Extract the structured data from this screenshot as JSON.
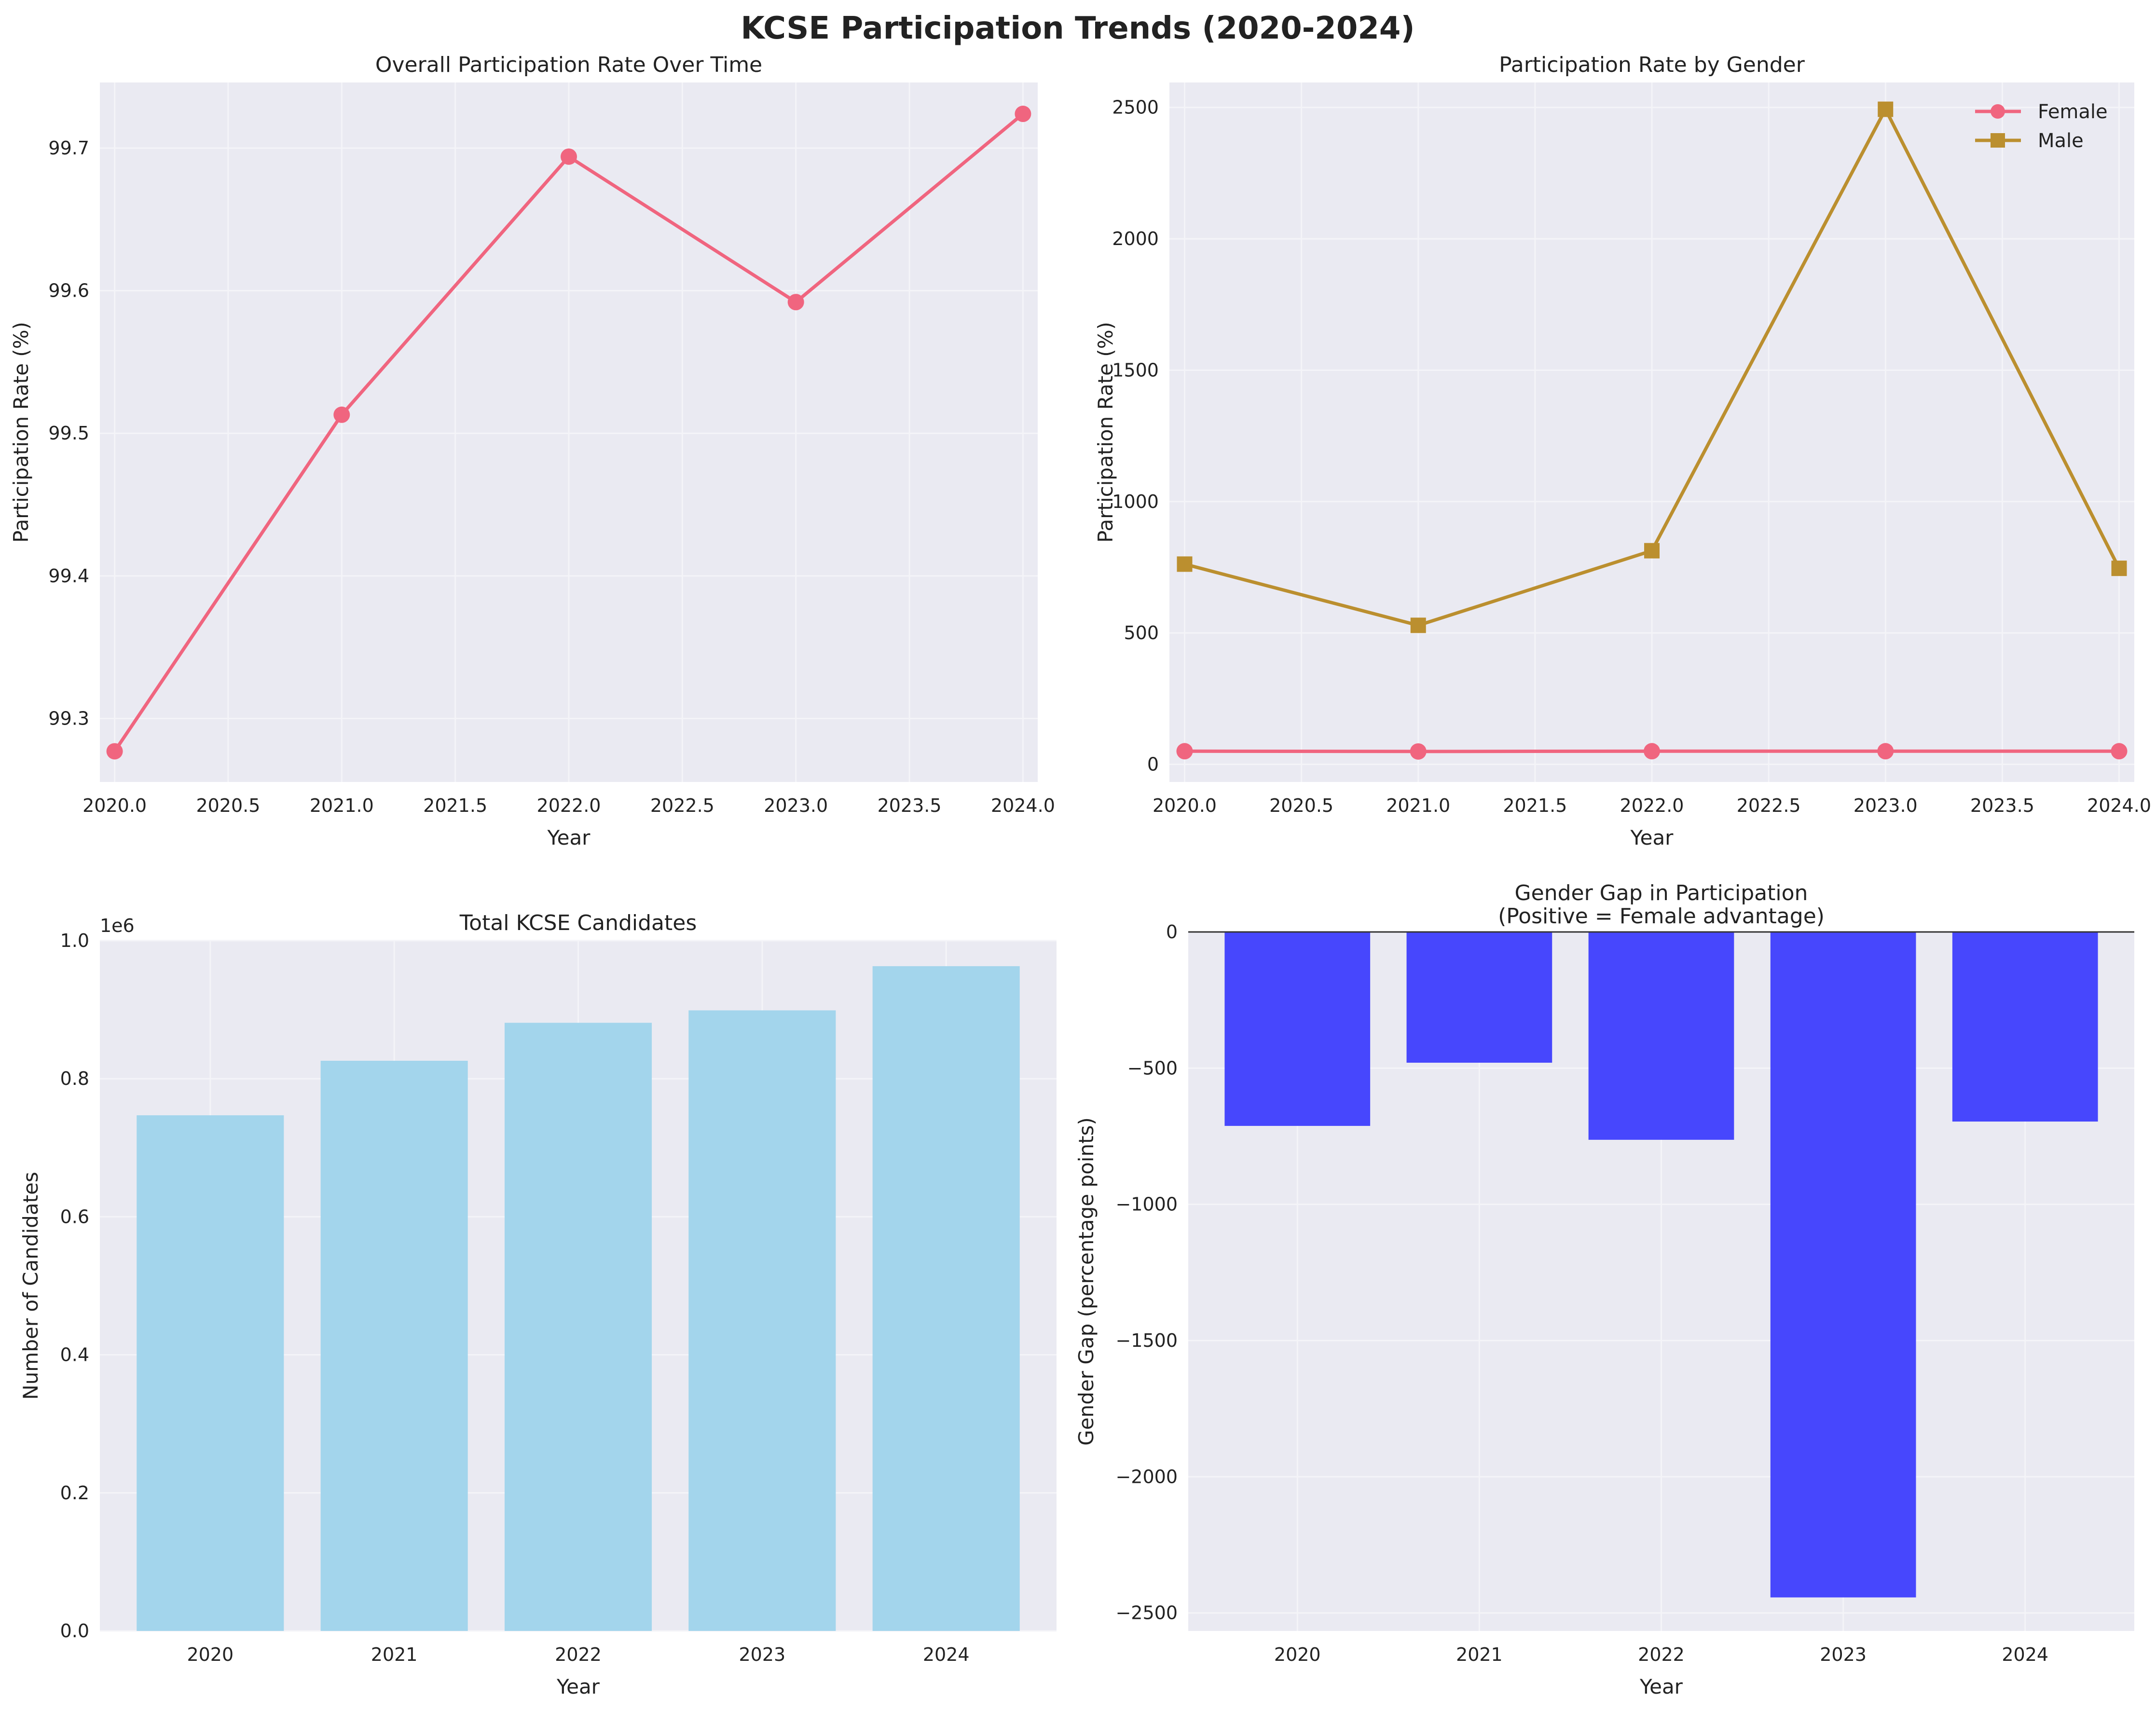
{
  "title": "KCSE Participation Trends (2020-2024)",
  "colors": {
    "plot_bg": "#eaeaf2",
    "grid": "#f4f4f8",
    "overall_line": "#f0657f",
    "female_line": "#f0657f",
    "male_line": "#bb8f2f",
    "candidates_bar": "#a3d5ec",
    "gap_bar": "#4747fd",
    "zero_line": "#333333"
  },
  "chart_data": [
    {
      "id": "overall",
      "type": "line",
      "title": "Overall Participation Rate Over Time",
      "xlabel": "Year",
      "ylabel": "Participation Rate (%)",
      "xlim": [
        2019.935,
        2024.065
      ],
      "ylim": [
        99.2555,
        99.746
      ],
      "xticks": [
        2020.0,
        2020.5,
        2021.0,
        2021.5,
        2022.0,
        2022.5,
        2023.0,
        2023.5,
        2024.0
      ],
      "xtick_labels": [
        "2020.0",
        "2020.5",
        "2021.0",
        "2021.5",
        "2022.0",
        "2022.5",
        "2023.0",
        "2023.5",
        "2024.0"
      ],
      "yticks": [
        99.3,
        99.4,
        99.5,
        99.6,
        99.7
      ],
      "ytick_labels": [
        "99.3",
        "99.4",
        "99.5",
        "99.6",
        "99.7"
      ],
      "grid": true,
      "x": [
        2020,
        2021,
        2022,
        2023,
        2024
      ],
      "series": [
        {
          "values": [
            99.277,
            99.513,
            99.694,
            99.592,
            99.724
          ],
          "marker": "circle"
        }
      ]
    },
    {
      "id": "gender",
      "type": "line",
      "title": "Participation Rate by Gender",
      "xlabel": "Year",
      "ylabel": "Participation Rate (%)",
      "xlim": [
        2019.935,
        2024.065
      ],
      "ylim": [
        -67,
        2595
      ],
      "xticks": [
        2020.0,
        2020.5,
        2021.0,
        2021.5,
        2022.0,
        2022.5,
        2023.0,
        2023.5,
        2024.0
      ],
      "xtick_labels": [
        "2020.0",
        "2020.5",
        "2021.0",
        "2021.5",
        "2022.0",
        "2022.5",
        "2023.0",
        "2023.5",
        "2024.0"
      ],
      "yticks": [
        0,
        500,
        1000,
        1500,
        2000,
        2500
      ],
      "ytick_labels": [
        "0",
        "500",
        "1000",
        "1500",
        "2000",
        "2500"
      ],
      "grid": true,
      "legend": "top-right",
      "x": [
        2020,
        2021,
        2022,
        2023,
        2024
      ],
      "series": [
        {
          "name": "Female",
          "values": [
            50,
            49,
            50,
            50,
            50
          ],
          "marker": "circle"
        },
        {
          "name": "Male",
          "values": [
            762,
            529,
            813,
            2493,
            746
          ],
          "marker": "square"
        }
      ]
    },
    {
      "id": "candidates",
      "type": "bar",
      "title": "Total KCSE Candidates",
      "xlabel": "Year",
      "ylabel": "Number of Candidates",
      "offset_label": "1e6",
      "categories": [
        "2020",
        "2021",
        "2022",
        "2023",
        "2024"
      ],
      "values": [
        747000,
        826000,
        881000,
        899000,
        963000
      ],
      "ylim": [
        0,
        1000000
      ],
      "yticks": [
        0,
        200000,
        400000,
        600000,
        800000,
        1000000
      ],
      "ytick_labels": [
        "0.0",
        "0.2",
        "0.4",
        "0.6",
        "0.8",
        "1.0"
      ],
      "grid": true
    },
    {
      "id": "gap",
      "type": "bar",
      "title": "Gender Gap in Participation",
      "subtitle": "(Positive = Female advantage)",
      "xlabel": "Year",
      "ylabel": "Gender Gap (percentage points)",
      "categories": [
        "2020",
        "2021",
        "2022",
        "2023",
        "2024"
      ],
      "values": [
        -712,
        -480,
        -763,
        -2443,
        -696
      ],
      "ylim": [
        -2566,
        0
      ],
      "yticks": [
        -2500,
        -2000,
        -1500,
        -1000,
        -500,
        0
      ],
      "ytick_labels": [
        "−2500",
        "−2000",
        "−1500",
        "−1000",
        "−500",
        "0"
      ],
      "grid": true,
      "reference_line": 0
    }
  ]
}
